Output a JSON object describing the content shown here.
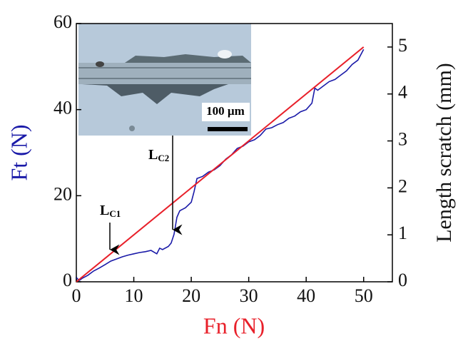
{
  "chart_data": {
    "type": "line",
    "x_label": "Fn (N)",
    "y_label": "Ft (N)",
    "y2_label": "Length scratch (mm)",
    "xlim": [
      0,
      55
    ],
    "xticks": [
      0,
      10,
      20,
      30,
      40,
      50
    ],
    "ylim": [
      0,
      60
    ],
    "yticks": [
      0,
      20,
      40,
      60
    ],
    "y2lim": [
      0,
      5.5
    ],
    "y2ticks": [
      0,
      1,
      2,
      3,
      4,
      5
    ],
    "series": [
      {
        "color": "#1a1aa8",
        "x": [
          0,
          0.5,
          1,
          2,
          3,
          4,
          5,
          6,
          7,
          8,
          9,
          10,
          11,
          12,
          13,
          14,
          14.5,
          15,
          16,
          16.5,
          17,
          17.5,
          18,
          19,
          20,
          20.5,
          21,
          22,
          23,
          24,
          25,
          26,
          27,
          28,
          29,
          30,
          31,
          32,
          33,
          34,
          35,
          36,
          37,
          38,
          39,
          40,
          41,
          41.5,
          42,
          43,
          44,
          45,
          46,
          47,
          48,
          49,
          50
        ],
        "values": [
          1,
          0.3,
          0.8,
          1.5,
          2.5,
          3.2,
          4,
          4.8,
          5.3,
          5.8,
          6.2,
          6.5,
          6.8,
          7,
          7.3,
          6.5,
          7.8,
          7.5,
          8.2,
          9,
          11,
          15,
          16.5,
          17.2,
          18.5,
          21,
          24,
          24.5,
          25.5,
          26,
          27,
          28.5,
          29.5,
          31,
          31.5,
          32.5,
          33,
          34,
          35.5,
          35.8,
          36.5,
          37,
          38,
          38.5,
          39.5,
          40,
          41.5,
          45,
          44.5,
          45.5,
          46.5,
          47,
          48,
          49,
          50.5,
          51.5,
          54
        ]
      },
      {
        "color": "#e8202a",
        "axis": "y2",
        "x": [
          0,
          50
        ],
        "values": [
          0,
          5
        ]
      }
    ],
    "annotations": [
      {
        "text": "L",
        "sub": "C1"
      },
      {
        "text": "L",
        "sub": "C2"
      }
    ],
    "inset_label": "100 µm"
  }
}
